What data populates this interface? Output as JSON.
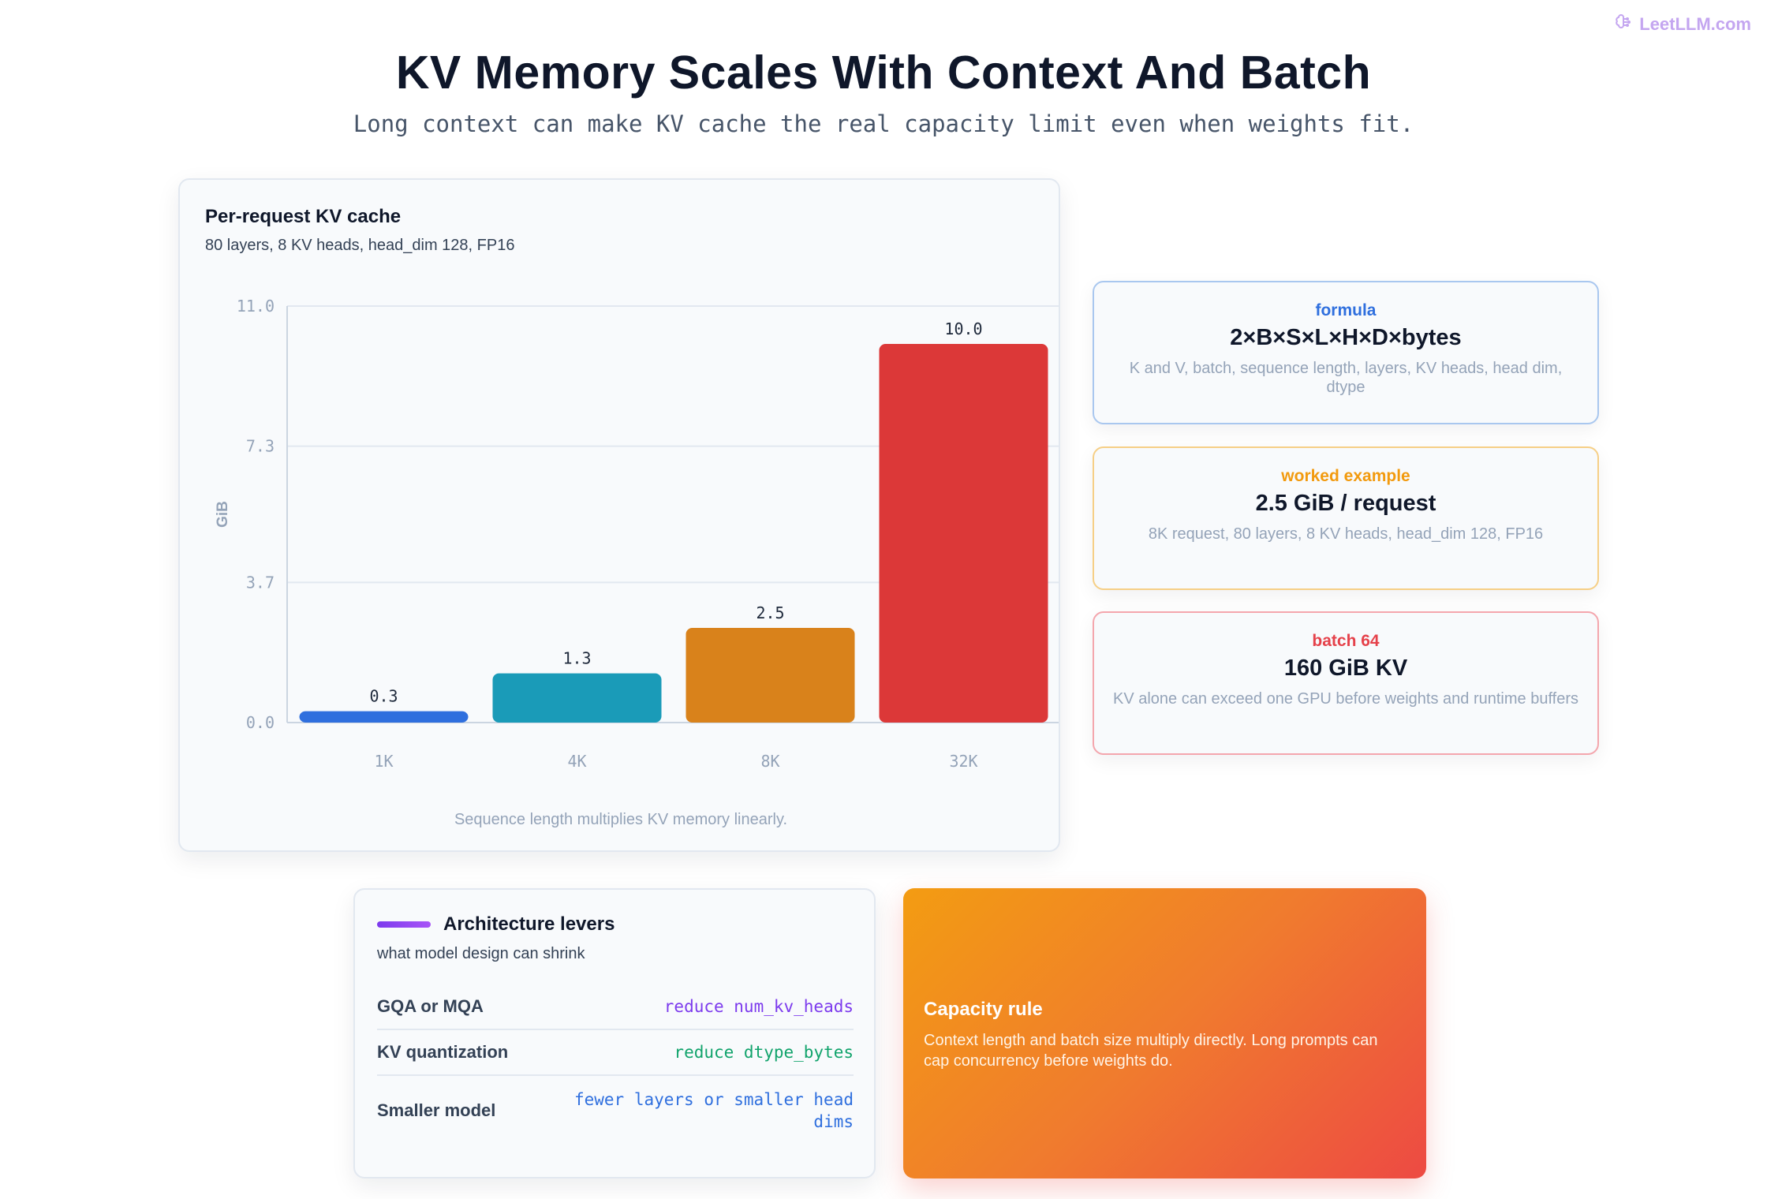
{
  "brand": {
    "name": "LeetLLM.com",
    "icon": "brain-icon"
  },
  "header": {
    "title": "KV Memory Scales With Context And Batch",
    "subtitle": "Long context can make KV cache the real capacity limit even when weights fit."
  },
  "chart_card": {
    "title": "Per-request KV cache",
    "subtitle": "80 layers, 8 KV heads, head_dim 128, FP16",
    "note": "Sequence length multiplies KV memory linearly."
  },
  "chart_data": {
    "type": "bar",
    "title": "Per-request KV cache",
    "subtitle": "80 layers, 8 KV heads, head_dim 128, FP16",
    "categories": [
      "1K",
      "4K",
      "8K",
      "32K"
    ],
    "values": [
      0.3,
      1.3,
      2.5,
      10.0
    ],
    "value_labels": [
      "0.3",
      "1.3",
      "2.5",
      "10.0"
    ],
    "colors": [
      "#2f6fde",
      "#1a9bb8",
      "#d9821b",
      "#dc3838"
    ],
    "ylabel": "GiB",
    "xlabel": "",
    "ylim": [
      0,
      11.0
    ],
    "yticks": [
      0.0,
      3.7,
      7.3,
      11.0
    ],
    "ytick_labels": [
      "0.0",
      "3.7",
      "7.3",
      "11.0"
    ],
    "grid": true,
    "annotation": "Sequence length multiplies KV memory linearly."
  },
  "info_cards": [
    {
      "kicker": "formula",
      "headline": "2×B×S×L×H×D×bytes",
      "desc": "K and V, batch, sequence length, layers, KV heads, head dim, dtype"
    },
    {
      "kicker": "worked example",
      "headline": "2.5 GiB / request",
      "desc": "8K request, 80 layers, 8 KV heads, head_dim 128, FP16"
    },
    {
      "kicker": "batch 64",
      "headline": "160 GiB KV",
      "desc": "KV alone can exceed one GPU before weights and runtime buffers"
    }
  ],
  "levers": {
    "title": "Architecture levers",
    "subtitle": "what model design can shrink",
    "rows": [
      {
        "name": "GQA or MQA",
        "value": "reduce num_kv_heads",
        "color": "#7c3aed"
      },
      {
        "name": "KV quantization",
        "value": "reduce dtype_bytes",
        "color": "#10a36b"
      },
      {
        "name": "Smaller model",
        "value": "fewer layers or smaller head dims",
        "color": "#2f6fde"
      }
    ]
  },
  "capacity": {
    "title": "Capacity rule",
    "text": "Context length and batch size multiply directly. Long prompts can cap concurrency before weights do."
  }
}
